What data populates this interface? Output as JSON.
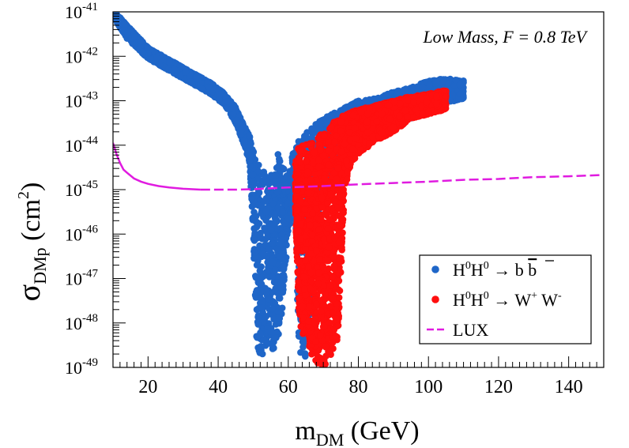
{
  "chart_data": {
    "type": "scatter",
    "annotation": "Low Mass, F = 0.8 TeV",
    "xlabel": {
      "main": "m",
      "sub": "DM",
      "rest": " (GeV)"
    },
    "ylabel": {
      "main": "σ",
      "sub": "DMp",
      "rest": " (cm",
      "sup": "2",
      "close": ")"
    },
    "xlim": [
      10,
      150
    ],
    "ylim_log10": [
      -49,
      -41
    ],
    "x_ticks": [
      {
        "value": 20,
        "label": "20"
      },
      {
        "value": 40,
        "label": "40"
      },
      {
        "value": 60,
        "label": "60"
      },
      {
        "value": 80,
        "label": "80"
      },
      {
        "value": 100,
        "label": "100"
      },
      {
        "value": 120,
        "label": "120"
      },
      {
        "value": 140,
        "label": "140"
      }
    ],
    "y_ticks": [
      {
        "exp": -41,
        "base": "10",
        "sup": "-41"
      },
      {
        "exp": -42,
        "base": "10",
        "sup": "-42"
      },
      {
        "exp": -43,
        "base": "10",
        "sup": "-43"
      },
      {
        "exp": -44,
        "base": "10",
        "sup": "-44"
      },
      {
        "exp": -45,
        "base": "10",
        "sup": "-45"
      },
      {
        "exp": -46,
        "base": "10",
        "sup": "-46"
      },
      {
        "exp": -47,
        "base": "10",
        "sup": "-47"
      },
      {
        "exp": -48,
        "base": "10",
        "sup": "-48"
      },
      {
        "exp": -49,
        "base": "10",
        "sup": "-49"
      }
    ],
    "legend": {
      "position": "lower-right",
      "entries": [
        {
          "id": "bb",
          "text": "H⁰H⁰ → b b̄",
          "pre": "H",
          "s1": "0",
          "mid": "H",
          "s2": "0",
          "arrow": " → ",
          "post": "b ",
          "overline": "b",
          "color": "#1f66c8"
        },
        {
          "id": "ww",
          "text": "H⁰H⁰ → W⁺ W⁻",
          "pre": "H",
          "s1": "0",
          "mid": "H",
          "s2": "0",
          "arrow": " → ",
          "w1": "W",
          "wsup1": "+",
          "w2": " W",
          "wsup2": "-",
          "color": "#ff0f0f"
        },
        {
          "id": "lux",
          "text": "LUX",
          "label": "LUX",
          "color": "#e01be0"
        }
      ]
    },
    "series": [
      {
        "name": "H0H0 -> b bbar",
        "color": "#1f66c8",
        "band": [
          {
            "x": 10,
            "ylo": -41.1,
            "yhi": -40.95
          },
          {
            "x": 14,
            "ylo": -41.6,
            "yhi": -41.3
          },
          {
            "x": 20,
            "ylo": -42.05,
            "yhi": -41.8
          },
          {
            "x": 30,
            "ylo": -42.5,
            "yhi": -42.25
          },
          {
            "x": 38,
            "ylo": -42.85,
            "yhi": -42.6
          },
          {
            "x": 42,
            "ylo": -43.1,
            "yhi": -42.85
          },
          {
            "x": 45,
            "ylo": -43.5,
            "yhi": -43.15
          },
          {
            "x": 47,
            "ylo": -43.9,
            "yhi": -43.5
          },
          {
            "x": 49,
            "ylo": -44.4,
            "yhi": -43.8
          },
          {
            "x": 50,
            "ylo": -46.0,
            "yhi": -44.1
          },
          {
            "x": 51,
            "ylo": -48.5,
            "yhi": -44.3
          },
          {
            "x": 52,
            "ylo": -49.0,
            "yhi": -44.5
          },
          {
            "x": 53,
            "ylo": -48.8,
            "yhi": -44.6
          },
          {
            "x": 54,
            "ylo": -48.5,
            "yhi": -44.7
          },
          {
            "x": 55,
            "ylo": -48.5,
            "yhi": -44.7
          },
          {
            "x": 56,
            "ylo": -48.7,
            "yhi": -44.5
          },
          {
            "x": 57,
            "ylo": -48.4,
            "yhi": -44.2
          },
          {
            "x": 58,
            "ylo": -48.0,
            "yhi": -44.3
          },
          {
            "x": 59,
            "ylo": -47.0,
            "yhi": -44.5
          },
          {
            "x": 60,
            "ylo": -46.0,
            "yhi": -44.8
          },
          {
            "x": 61,
            "ylo": -45.5,
            "yhi": -44.3
          },
          {
            "x": 62,
            "ylo": -45.6,
            "yhi": -44.0
          },
          {
            "x": 63,
            "ylo": -48.7,
            "yhi": -43.9
          },
          {
            "x": 65,
            "ylo": -48.8,
            "yhi": -43.7
          },
          {
            "x": 70,
            "ylo": -45.0,
            "yhi": -43.4
          },
          {
            "x": 75,
            "ylo": -44.3,
            "yhi": -43.2
          },
          {
            "x": 80,
            "ylo": -44.0,
            "yhi": -43.0
          },
          {
            "x": 85,
            "ylo": -43.8,
            "yhi": -42.95
          },
          {
            "x": 90,
            "ylo": -43.5,
            "yhi": -42.8
          },
          {
            "x": 95,
            "ylo": -43.4,
            "yhi": -42.7
          },
          {
            "x": 100,
            "ylo": -43.2,
            "yhi": -42.55
          },
          {
            "x": 105,
            "ylo": -43.05,
            "yhi": -42.5
          },
          {
            "x": 110,
            "ylo": -42.95,
            "yhi": -42.55
          }
        ]
      },
      {
        "name": "H0H0 -> W+ W-",
        "color": "#ff0f0f",
        "band": [
          {
            "x": 62,
            "ylo": -45.5,
            "yhi": -44.3
          },
          {
            "x": 63,
            "ylo": -47.8,
            "yhi": -44.0
          },
          {
            "x": 64,
            "ylo": -48.3,
            "yhi": -43.95
          },
          {
            "x": 66,
            "ylo": -48.6,
            "yhi": -43.9
          },
          {
            "x": 68,
            "ylo": -48.9,
            "yhi": -43.85
          },
          {
            "x": 70,
            "ylo": -49.0,
            "yhi": -43.7
          },
          {
            "x": 72,
            "ylo": -48.8,
            "yhi": -43.55
          },
          {
            "x": 74,
            "ylo": -48.5,
            "yhi": -43.4
          },
          {
            "x": 75,
            "ylo": -47.0,
            "yhi": -43.35
          },
          {
            "x": 76,
            "ylo": -45.0,
            "yhi": -43.3
          },
          {
            "x": 78,
            "ylo": -44.4,
            "yhi": -43.25
          },
          {
            "x": 80,
            "ylo": -44.2,
            "yhi": -43.2
          },
          {
            "x": 85,
            "ylo": -43.9,
            "yhi": -43.1
          },
          {
            "x": 90,
            "ylo": -43.7,
            "yhi": -43.0
          },
          {
            "x": 95,
            "ylo": -43.4,
            "yhi": -42.9
          },
          {
            "x": 100,
            "ylo": -43.3,
            "yhi": -42.85
          },
          {
            "x": 105,
            "ylo": -43.2,
            "yhi": -42.75
          }
        ]
      },
      {
        "name": "LUX",
        "color": "#e01be0",
        "style": "dashed after x=35",
        "points": [
          [
            10,
            -43.95
          ],
          [
            11,
            -44.2
          ],
          [
            12,
            -44.4
          ],
          [
            13,
            -44.55
          ],
          [
            14,
            -44.62
          ],
          [
            16,
            -44.75
          ],
          [
            18,
            -44.82
          ],
          [
            20,
            -44.87
          ],
          [
            23,
            -44.92
          ],
          [
            26,
            -44.95
          ],
          [
            30,
            -44.98
          ],
          [
            35,
            -45.0
          ],
          [
            40,
            -45.0
          ],
          [
            45,
            -45.0
          ],
          [
            50,
            -44.99
          ],
          [
            55,
            -44.97
          ],
          [
            60,
            -44.95
          ],
          [
            70,
            -44.92
          ],
          [
            80,
            -44.88
          ],
          [
            90,
            -44.85
          ],
          [
            100,
            -44.82
          ],
          [
            110,
            -44.78
          ],
          [
            120,
            -44.76
          ],
          [
            130,
            -44.72
          ],
          [
            140,
            -44.7
          ],
          [
            150,
            -44.67
          ]
        ]
      }
    ]
  }
}
